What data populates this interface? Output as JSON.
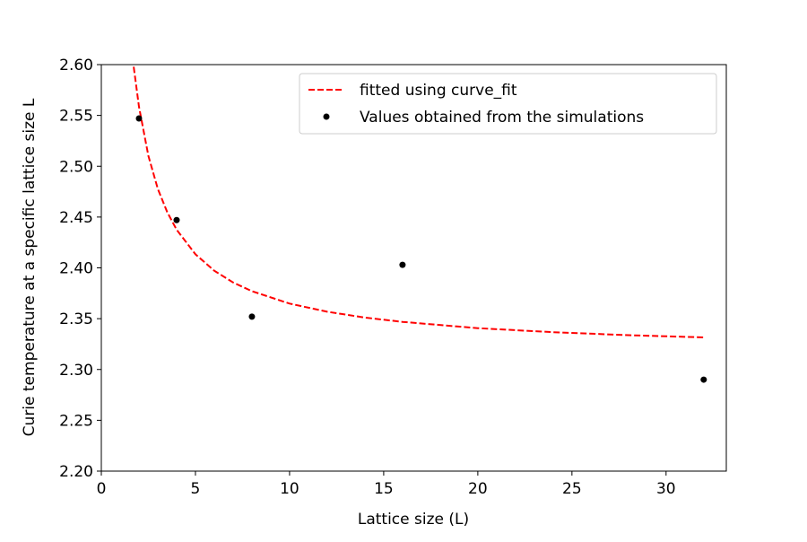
{
  "chart_data": {
    "type": "scatter",
    "title": "",
    "xlabel": "Lattice size (L)",
    "ylabel": "Curie temperature at a specific lattice size L",
    "xlim": [
      0,
      33.2
    ],
    "ylim": [
      2.2,
      2.6
    ],
    "xticks": [
      0,
      5,
      10,
      15,
      20,
      25,
      30
    ],
    "xtick_labels": [
      "0",
      "5",
      "10",
      "15",
      "20",
      "25",
      "30"
    ],
    "yticks": [
      2.2,
      2.25,
      2.3,
      2.35,
      2.4,
      2.45,
      2.5,
      2.55,
      2.6
    ],
    "ytick_labels": [
      "2.20",
      "2.25",
      "2.30",
      "2.35",
      "2.40",
      "2.45",
      "2.50",
      "2.55",
      "2.60"
    ],
    "grid": false,
    "legend_position": "top-right",
    "series": [
      {
        "name": "fitted using curve_fit",
        "kind": "line",
        "style": "dashed",
        "color": "#ff0000",
        "x": [
          1.72,
          2,
          2.5,
          3,
          3.5,
          4,
          5,
          6,
          7,
          8,
          10,
          12,
          14,
          16,
          20,
          24,
          28,
          32
        ],
        "y": [
          2.5979,
          2.5585,
          2.5101,
          2.4778,
          2.4548,
          2.4375,
          2.4133,
          2.3972,
          2.3856,
          2.377,
          2.3649,
          2.3568,
          2.3511,
          2.3468,
          2.3407,
          2.3367,
          2.3338,
          2.3316
        ]
      },
      {
        "name": "Values obtained from the simulations",
        "kind": "scatter",
        "color": "#000000",
        "x": [
          2,
          4,
          8,
          16,
          32
        ],
        "y": [
          2.547,
          2.447,
          2.352,
          2.403,
          2.29
        ]
      }
    ]
  }
}
